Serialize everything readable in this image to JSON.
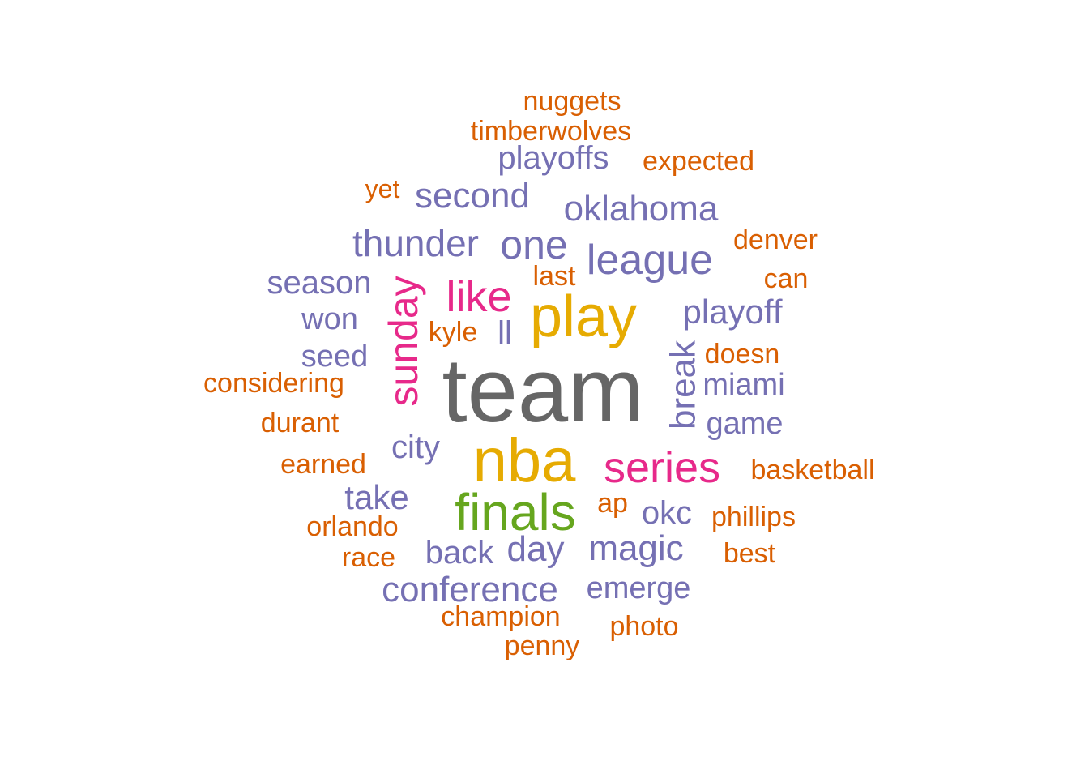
{
  "colors": {
    "gray": "#666666",
    "gold": "#E6AB02",
    "pink": "#E7298A",
    "green": "#66A61E",
    "purple": "#7570B3",
    "orange": "#D95F02"
  },
  "words": [
    {
      "text": "team",
      "color": "gray"
    },
    {
      "text": "nba",
      "color": "gold"
    },
    {
      "text": "play",
      "color": "gold"
    },
    {
      "text": "finals",
      "color": "green"
    },
    {
      "text": "series",
      "color": "pink"
    },
    {
      "text": "like",
      "color": "pink"
    },
    {
      "text": "sunday",
      "color": "pink"
    },
    {
      "text": "league",
      "color": "purple"
    },
    {
      "text": "one",
      "color": "purple"
    },
    {
      "text": "thunder",
      "color": "purple"
    },
    {
      "text": "oklahoma",
      "color": "purple"
    },
    {
      "text": "second",
      "color": "purple"
    },
    {
      "text": "playoffs",
      "color": "purple"
    },
    {
      "text": "playoff",
      "color": "purple"
    },
    {
      "text": "break",
      "color": "purple"
    },
    {
      "text": "season",
      "color": "purple"
    },
    {
      "text": "won",
      "color": "purple"
    },
    {
      "text": "seed",
      "color": "purple"
    },
    {
      "text": "ll",
      "color": "purple"
    },
    {
      "text": "miami",
      "color": "purple"
    },
    {
      "text": "game",
      "color": "purple"
    },
    {
      "text": "city",
      "color": "purple"
    },
    {
      "text": "take",
      "color": "purple"
    },
    {
      "text": "okc",
      "color": "purple"
    },
    {
      "text": "magic",
      "color": "purple"
    },
    {
      "text": "day",
      "color": "purple"
    },
    {
      "text": "back",
      "color": "purple"
    },
    {
      "text": "conference",
      "color": "purple"
    },
    {
      "text": "emerge",
      "color": "purple"
    },
    {
      "text": "nuggets",
      "color": "orange"
    },
    {
      "text": "timberwolves",
      "color": "orange"
    },
    {
      "text": "expected",
      "color": "orange"
    },
    {
      "text": "yet",
      "color": "orange"
    },
    {
      "text": "denver",
      "color": "orange"
    },
    {
      "text": "last",
      "color": "orange"
    },
    {
      "text": "can",
      "color": "orange"
    },
    {
      "text": "kyle",
      "color": "orange"
    },
    {
      "text": "doesn",
      "color": "orange"
    },
    {
      "text": "considering",
      "color": "orange"
    },
    {
      "text": "durant",
      "color": "orange"
    },
    {
      "text": "earned",
      "color": "orange"
    },
    {
      "text": "basketball",
      "color": "orange"
    },
    {
      "text": "ap",
      "color": "orange"
    },
    {
      "text": "phillips",
      "color": "orange"
    },
    {
      "text": "orlando",
      "color": "orange"
    },
    {
      "text": "race",
      "color": "orange"
    },
    {
      "text": "best",
      "color": "orange"
    },
    {
      "text": "champion",
      "color": "orange"
    },
    {
      "text": "photo",
      "color": "orange"
    },
    {
      "text": "penny",
      "color": "orange"
    }
  ]
}
